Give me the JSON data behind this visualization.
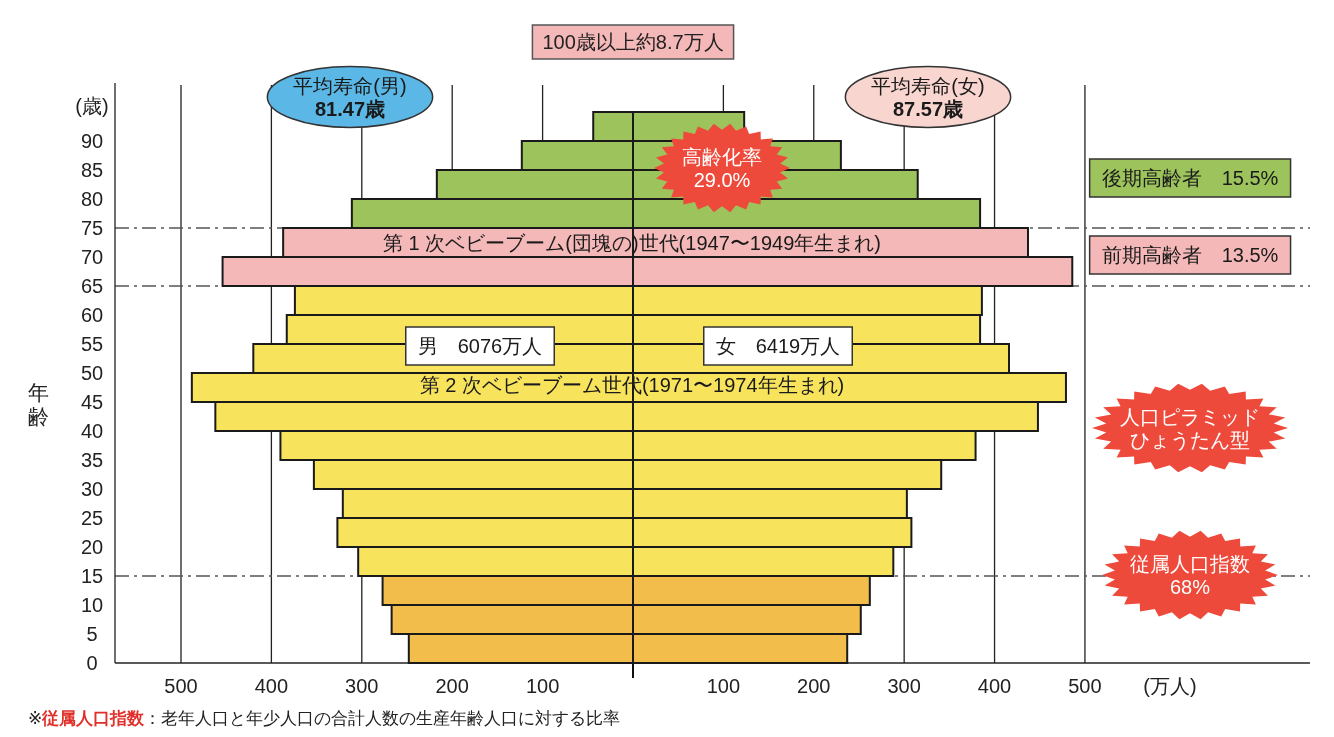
{
  "chart_data": [
    {
      "type": "histogram",
      "orientation": "horizontal",
      "title": "100歳以上約8.7万人",
      "ylabel": "年齢",
      "bins": [
        0,
        5,
        10,
        15,
        20,
        25,
        30,
        35,
        40,
        45,
        50,
        55,
        60,
        65,
        70,
        75,
        80,
        85,
        90,
        95
      ],
      "series": [
        {
          "colors": [
            "#f2bd4b",
            "#f2bd4b",
            "#f2bd4b",
            "#f8e45c",
            "#f8e45c",
            "#f8e45c",
            "#f8e45c",
            "#f8e45c",
            "#f8e45c",
            "#f8e45c",
            "#f8e45c",
            "#f8e45c",
            "#f8e45c",
            "#f5b8b8",
            "#f5b8b8",
            "#9cc35c",
            "#9cc35c",
            "#9cc35c",
            "#9cc35c"
          ],
          "values": [
            248,
            267,
            277,
            304,
            327,
            321,
            353,
            390,
            462,
            488,
            420,
            383,
            374,
            454,
            387,
            311,
            217,
            123,
            44
          ]
        }
      ],
      "xlim": [
        573,
        0
      ],
      "ylim": [
        0,
        100
      ],
      "xticks": [
        500,
        400,
        300,
        200,
        100
      ],
      "yticks": [
        0,
        5,
        10,
        15,
        20,
        25,
        30,
        35,
        40,
        45,
        50,
        55,
        60,
        65,
        70,
        75,
        80,
        85,
        90,
        {
          "value": 96,
          "label": "(歳)"
        }
      ],
      "grid": "x",
      "ref_lines": [
        {
          "axis": "y",
          "value": 75,
          "line_style": "dashed",
          "color": "#555555"
        },
        {
          "axis": "y",
          "value": 65,
          "line_style": "dashed",
          "color": "#555555"
        },
        {
          "axis": "y",
          "value": 15,
          "line_style": "dashed",
          "color": "#555555"
        }
      ],
      "annotations": [
        "平均寿命(男)81.47歳",
        "第 1 次ベビーブーム(団塊の)世代(1947〜1949年生まれ)",
        "男　6076万人",
        "第 2 次ベビーブーム世代(1971〜1974年生まれ)",
        "※**従属人口指数**：老年人口と年少人口の合計人数の生産年齢人口に対する比率"
      ]
    },
    {
      "type": "histogram",
      "orientation": "horizontal",
      "xlabel": "(万人)",
      "bins": [
        0,
        5,
        10,
        15,
        20,
        25,
        30,
        35,
        40,
        45,
        50,
        55,
        60,
        65,
        70,
        75,
        80,
        85,
        90,
        95
      ],
      "series": [
        {
          "colors": [
            "#f2bd4b",
            "#f2bd4b",
            "#f2bd4b",
            "#f8e45c",
            "#f8e45c",
            "#f8e45c",
            "#f8e45c",
            "#f8e45c",
            "#f8e45c",
            "#f8e45c",
            "#f8e45c",
            "#f8e45c",
            "#f8e45c",
            "#f5b8b8",
            "#f5b8b8",
            "#9cc35c",
            "#9cc35c",
            "#9cc35c",
            "#9cc35c"
          ],
          "values": [
            237,
            252,
            262,
            288,
            308,
            303,
            341,
            379,
            448,
            479,
            416,
            384,
            386,
            486,
            437,
            384,
            315,
            230,
            123
          ]
        }
      ],
      "xlim": [
        0,
        749
      ],
      "ylim": [
        0,
        100
      ],
      "xticks": [
        100,
        200,
        300,
        400,
        500
      ],
      "tick_labels": "x",
      "grid": "x",
      "ref_lines": [
        {
          "axis": "y",
          "value": 75,
          "line_style": "dashed",
          "color": "#555555"
        },
        {
          "axis": "y",
          "value": 65,
          "line_style": "dashed",
          "color": "#555555"
        },
        {
          "axis": "y",
          "value": 15,
          "line_style": "dashed",
          "color": "#555555"
        }
      ],
      "annotations": [
        "平均寿命(女)87.57歳",
        "高齢化率29.0%",
        "後期高齢者　15.5%",
        "前期高齢者　13.5%",
        "女　6419万人",
        "人口ピラミッドひょうたん型",
        "従属人口指数68%"
      ]
    }
  ]
}
